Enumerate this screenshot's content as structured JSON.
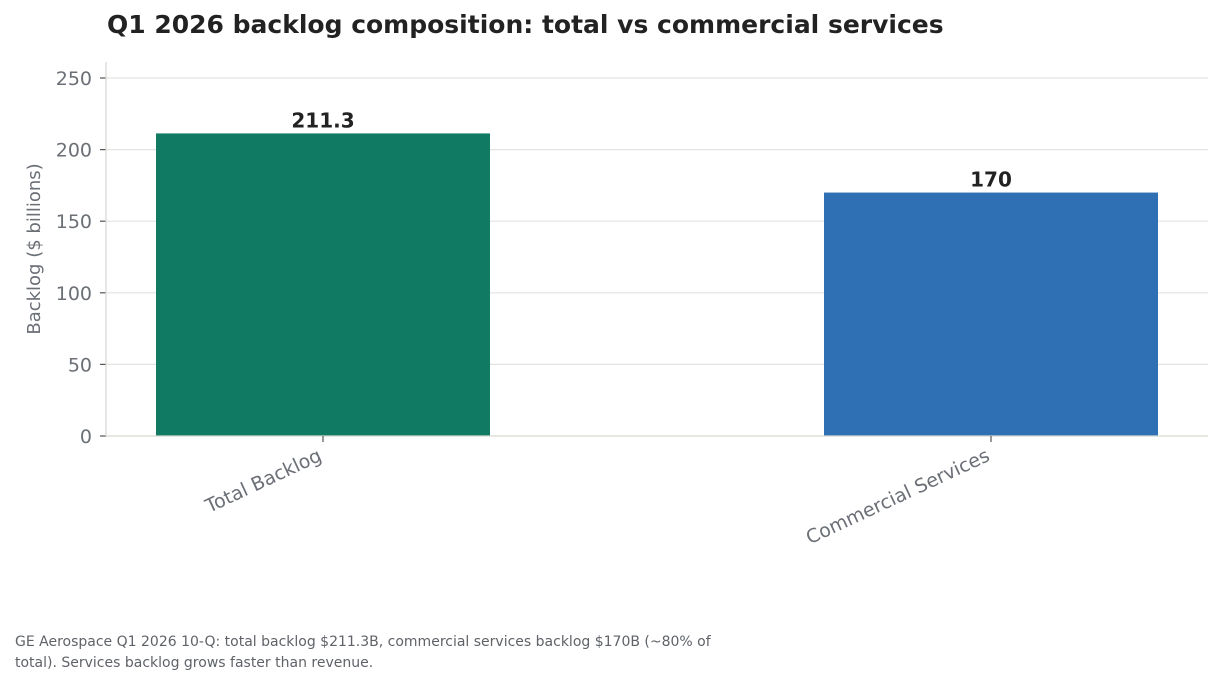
{
  "chart_data": {
    "type": "bar",
    "title": "Q1 2026 backlog composition: total vs commercial services",
    "categories": [
      "Total Backlog",
      "Commercial Services"
    ],
    "values": [
      211.3,
      170
    ],
    "value_labels": [
      "211.3",
      "170"
    ],
    "colors": [
      "#107a63",
      "#2f6fb3"
    ],
    "xlabel": "",
    "ylabel": "Backlog ($ billions)",
    "ylim": [
      0,
      260
    ],
    "yticks": [
      0,
      50,
      100,
      150,
      200,
      250
    ],
    "grid": "horizontal",
    "legend": "none",
    "x_tick_rotation": "angled"
  },
  "footnote": "GE Aerospace Q1 2026 10-Q: total backlog $211.3B, commercial services backlog $170B (~80% of total). Services backlog grows faster than revenue."
}
